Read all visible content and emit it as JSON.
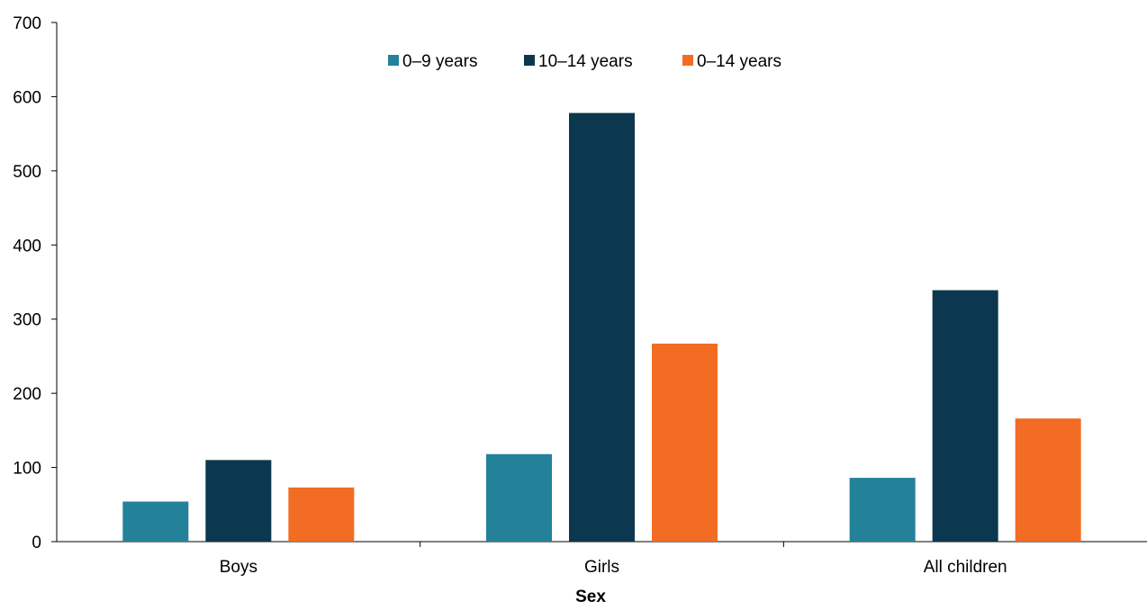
{
  "chart_data": {
    "type": "bar",
    "title": "",
    "xlabel": "Sex",
    "ylabel": "",
    "categories": [
      "Boys",
      "Girls",
      "All children"
    ],
    "series": [
      {
        "name": "0–9 years",
        "color": "#23819A",
        "values": [
          54,
          118,
          86
        ]
      },
      {
        "name": "10–14 years",
        "color": "#0B384E",
        "values": [
          110,
          578,
          339
        ]
      },
      {
        "name": "0–14 years",
        "color": "#F26C24",
        "values": [
          73,
          267,
          166
        ]
      }
    ],
    "ylim": [
      0,
      700
    ],
    "yticks": [
      0,
      100,
      200,
      300,
      400,
      500,
      600,
      700
    ],
    "grid": false,
    "legend_position": "top-center"
  }
}
